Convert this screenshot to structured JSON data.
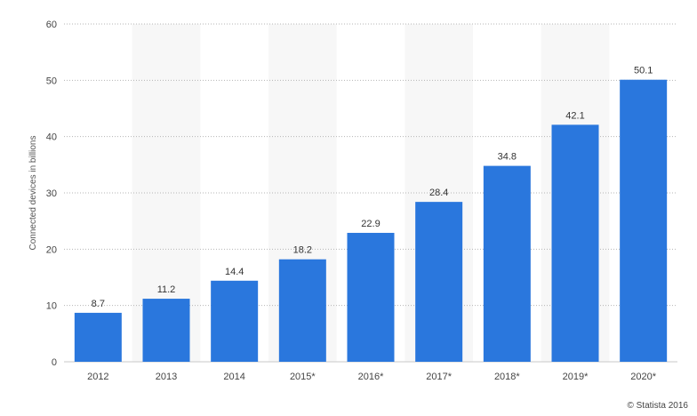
{
  "chart_data": {
    "type": "bar",
    "categories": [
      "2012",
      "2013",
      "2014",
      "2015*",
      "2016*",
      "2017*",
      "2018*",
      "2019*",
      "2020*"
    ],
    "values": [
      8.7,
      11.2,
      14.4,
      18.2,
      22.9,
      28.4,
      34.8,
      42.1,
      50.1
    ],
    "data_labels": [
      "8.7",
      "11.2",
      "14.4",
      "18.2",
      "22.9",
      "28.4",
      "34.8",
      "42.1",
      "50.1"
    ],
    "title": "",
    "xlabel": "",
    "ylabel": "Connected devices in billions",
    "ylim": [
      0,
      60
    ],
    "yticks": [
      "0",
      "10",
      "20",
      "30",
      "40",
      "50",
      "60"
    ],
    "grid": true,
    "bar_color": "#2a77dd",
    "band_color": "#f7f7f7"
  },
  "credit": "© Statista 2016"
}
